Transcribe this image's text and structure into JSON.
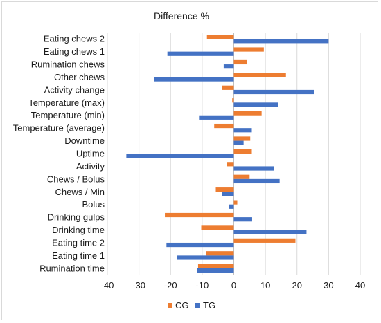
{
  "chart_data": {
    "type": "bar",
    "orientation": "horizontal",
    "title": "Difference %",
    "xlabel": "",
    "ylabel": "",
    "xlim": [
      -40,
      40
    ],
    "xticks": [
      -40,
      -30,
      -20,
      -10,
      0,
      10,
      20,
      30,
      40
    ],
    "grid": "vertical",
    "legend": "bottom-center",
    "categories": [
      "Eating chews 2",
      "Eating chews 1",
      "Rumination chews",
      "Other chews",
      "Activity change",
      "Temperature (max)",
      "Temperature (min)",
      "Temperature (average)",
      "Downtime",
      "Uptime",
      "Activity",
      "Chews / Bolus",
      "Chews / Min",
      "Bolus",
      "Drinking gulps",
      "Drinking time",
      "Eating time 2",
      "Eating time 1",
      "Rumination time"
    ],
    "series": [
      {
        "name": "CG",
        "color": "#ED7D31",
        "values": [
          -8.5,
          9.5,
          4.2,
          16.5,
          -3.8,
          -0.5,
          8.8,
          -6.2,
          5.2,
          5.7,
          -2.2,
          5.0,
          -5.7,
          1.1,
          -21.8,
          -10.3,
          19.5,
          -8.7,
          -11.3
        ]
      },
      {
        "name": "TG",
        "color": "#4472C4",
        "values": [
          30.0,
          -21.0,
          -3.2,
          -25.2,
          25.5,
          14.0,
          -11.0,
          5.7,
          3.1,
          -34.0,
          12.8,
          14.5,
          -3.8,
          -1.6,
          5.8,
          23.0,
          -21.3,
          -17.9,
          -11.7
        ]
      }
    ]
  }
}
